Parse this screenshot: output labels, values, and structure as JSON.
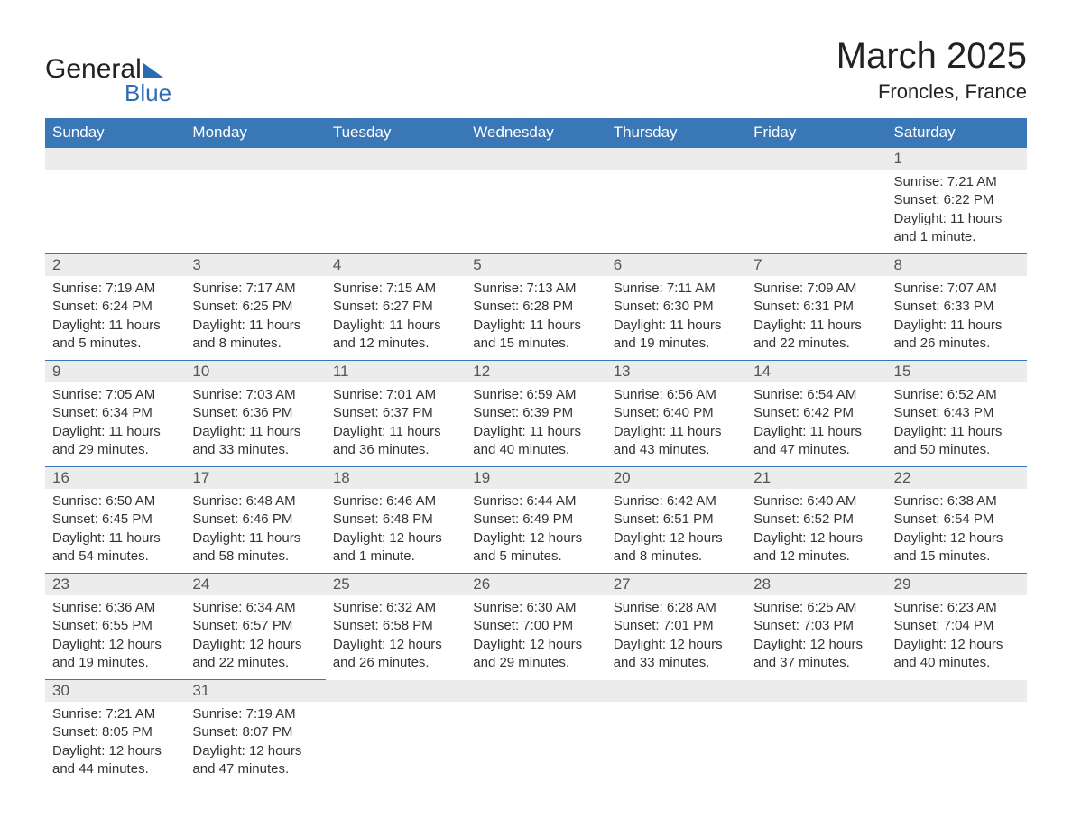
{
  "brand": {
    "word1": "General",
    "word2": "Blue"
  },
  "title": "March 2025",
  "subtitle": "Froncles, France",
  "colors": {
    "header_bg": "#3a77b7",
    "header_text": "#ffffff",
    "row_divider": "#3a77b7",
    "daynum_bg": "#ececec",
    "body_text": "#333333",
    "page_bg": "#ffffff",
    "logo_accent": "#2b6cb0"
  },
  "typography": {
    "title_fontsize_pt": 30,
    "subtitle_fontsize_pt": 17,
    "header_fontsize_pt": 13,
    "cell_fontsize_pt": 11
  },
  "layout": {
    "columns": 7,
    "rows": 6
  },
  "day_headers": [
    "Sunday",
    "Monday",
    "Tuesday",
    "Wednesday",
    "Thursday",
    "Friday",
    "Saturday"
  ],
  "weeks": [
    [
      null,
      null,
      null,
      null,
      null,
      null,
      {
        "n": "1",
        "sunrise": "Sunrise: 7:21 AM",
        "sunset": "Sunset: 6:22 PM",
        "daylight": "Daylight: 11 hours and 1 minute."
      }
    ],
    [
      {
        "n": "2",
        "sunrise": "Sunrise: 7:19 AM",
        "sunset": "Sunset: 6:24 PM",
        "daylight": "Daylight: 11 hours and 5 minutes."
      },
      {
        "n": "3",
        "sunrise": "Sunrise: 7:17 AM",
        "sunset": "Sunset: 6:25 PM",
        "daylight": "Daylight: 11 hours and 8 minutes."
      },
      {
        "n": "4",
        "sunrise": "Sunrise: 7:15 AM",
        "sunset": "Sunset: 6:27 PM",
        "daylight": "Daylight: 11 hours and 12 minutes."
      },
      {
        "n": "5",
        "sunrise": "Sunrise: 7:13 AM",
        "sunset": "Sunset: 6:28 PM",
        "daylight": "Daylight: 11 hours and 15 minutes."
      },
      {
        "n": "6",
        "sunrise": "Sunrise: 7:11 AM",
        "sunset": "Sunset: 6:30 PM",
        "daylight": "Daylight: 11 hours and 19 minutes."
      },
      {
        "n": "7",
        "sunrise": "Sunrise: 7:09 AM",
        "sunset": "Sunset: 6:31 PM",
        "daylight": "Daylight: 11 hours and 22 minutes."
      },
      {
        "n": "8",
        "sunrise": "Sunrise: 7:07 AM",
        "sunset": "Sunset: 6:33 PM",
        "daylight": "Daylight: 11 hours and 26 minutes."
      }
    ],
    [
      {
        "n": "9",
        "sunrise": "Sunrise: 7:05 AM",
        "sunset": "Sunset: 6:34 PM",
        "daylight": "Daylight: 11 hours and 29 minutes."
      },
      {
        "n": "10",
        "sunrise": "Sunrise: 7:03 AM",
        "sunset": "Sunset: 6:36 PM",
        "daylight": "Daylight: 11 hours and 33 minutes."
      },
      {
        "n": "11",
        "sunrise": "Sunrise: 7:01 AM",
        "sunset": "Sunset: 6:37 PM",
        "daylight": "Daylight: 11 hours and 36 minutes."
      },
      {
        "n": "12",
        "sunrise": "Sunrise: 6:59 AM",
        "sunset": "Sunset: 6:39 PM",
        "daylight": "Daylight: 11 hours and 40 minutes."
      },
      {
        "n": "13",
        "sunrise": "Sunrise: 6:56 AM",
        "sunset": "Sunset: 6:40 PM",
        "daylight": "Daylight: 11 hours and 43 minutes."
      },
      {
        "n": "14",
        "sunrise": "Sunrise: 6:54 AM",
        "sunset": "Sunset: 6:42 PM",
        "daylight": "Daylight: 11 hours and 47 minutes."
      },
      {
        "n": "15",
        "sunrise": "Sunrise: 6:52 AM",
        "sunset": "Sunset: 6:43 PM",
        "daylight": "Daylight: 11 hours and 50 minutes."
      }
    ],
    [
      {
        "n": "16",
        "sunrise": "Sunrise: 6:50 AM",
        "sunset": "Sunset: 6:45 PM",
        "daylight": "Daylight: 11 hours and 54 minutes."
      },
      {
        "n": "17",
        "sunrise": "Sunrise: 6:48 AM",
        "sunset": "Sunset: 6:46 PM",
        "daylight": "Daylight: 11 hours and 58 minutes."
      },
      {
        "n": "18",
        "sunrise": "Sunrise: 6:46 AM",
        "sunset": "Sunset: 6:48 PM",
        "daylight": "Daylight: 12 hours and 1 minute."
      },
      {
        "n": "19",
        "sunrise": "Sunrise: 6:44 AM",
        "sunset": "Sunset: 6:49 PM",
        "daylight": "Daylight: 12 hours and 5 minutes."
      },
      {
        "n": "20",
        "sunrise": "Sunrise: 6:42 AM",
        "sunset": "Sunset: 6:51 PM",
        "daylight": "Daylight: 12 hours and 8 minutes."
      },
      {
        "n": "21",
        "sunrise": "Sunrise: 6:40 AM",
        "sunset": "Sunset: 6:52 PM",
        "daylight": "Daylight: 12 hours and 12 minutes."
      },
      {
        "n": "22",
        "sunrise": "Sunrise: 6:38 AM",
        "sunset": "Sunset: 6:54 PM",
        "daylight": "Daylight: 12 hours and 15 minutes."
      }
    ],
    [
      {
        "n": "23",
        "sunrise": "Sunrise: 6:36 AM",
        "sunset": "Sunset: 6:55 PM",
        "daylight": "Daylight: 12 hours and 19 minutes."
      },
      {
        "n": "24",
        "sunrise": "Sunrise: 6:34 AM",
        "sunset": "Sunset: 6:57 PM",
        "daylight": "Daylight: 12 hours and 22 minutes."
      },
      {
        "n": "25",
        "sunrise": "Sunrise: 6:32 AM",
        "sunset": "Sunset: 6:58 PM",
        "daylight": "Daylight: 12 hours and 26 minutes."
      },
      {
        "n": "26",
        "sunrise": "Sunrise: 6:30 AM",
        "sunset": "Sunset: 7:00 PM",
        "daylight": "Daylight: 12 hours and 29 minutes."
      },
      {
        "n": "27",
        "sunrise": "Sunrise: 6:28 AM",
        "sunset": "Sunset: 7:01 PM",
        "daylight": "Daylight: 12 hours and 33 minutes."
      },
      {
        "n": "28",
        "sunrise": "Sunrise: 6:25 AM",
        "sunset": "Sunset: 7:03 PM",
        "daylight": "Daylight: 12 hours and 37 minutes."
      },
      {
        "n": "29",
        "sunrise": "Sunrise: 6:23 AM",
        "sunset": "Sunset: 7:04 PM",
        "daylight": "Daylight: 12 hours and 40 minutes."
      }
    ],
    [
      {
        "n": "30",
        "sunrise": "Sunrise: 7:21 AM",
        "sunset": "Sunset: 8:05 PM",
        "daylight": "Daylight: 12 hours and 44 minutes."
      },
      {
        "n": "31",
        "sunrise": "Sunrise: 7:19 AM",
        "sunset": "Sunset: 8:07 PM",
        "daylight": "Daylight: 12 hours and 47 minutes."
      },
      null,
      null,
      null,
      null,
      null
    ]
  ]
}
